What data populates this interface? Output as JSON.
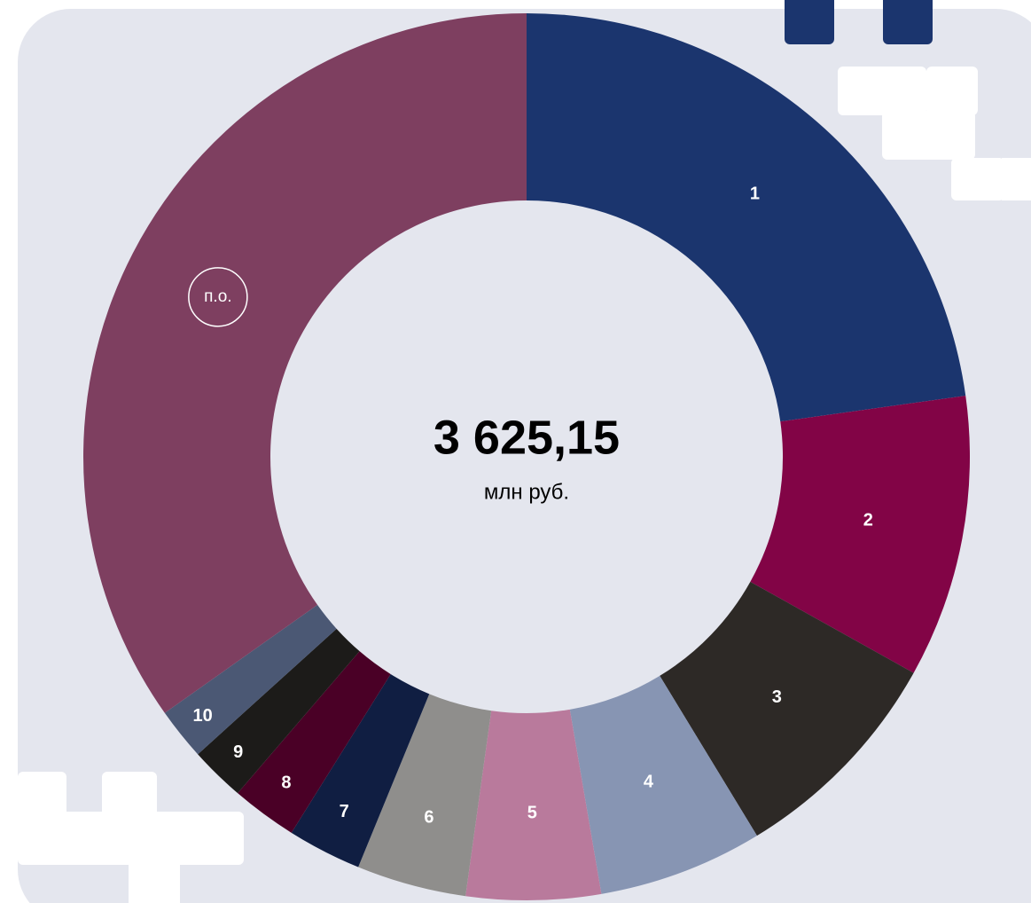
{
  "chart_data": {
    "type": "donut",
    "center_value": "3 625,15",
    "center_unit": "млн руб.",
    "categories": [
      "1",
      "2",
      "3",
      "4",
      "5",
      "6",
      "7",
      "8",
      "9",
      "10",
      "п.о."
    ],
    "values": [
      22.8,
      10.3,
      8.2,
      6.0,
      4.9,
      4.0,
      2.7,
      2.4,
      2.0,
      1.9,
      34.8
    ],
    "colors": [
      "#1b356e",
      "#820446",
      "#2d2926",
      "#8795b3",
      "#b97a9c",
      "#8f8e8c",
      "#101e42",
      "#4a0026",
      "#1c1b19",
      "#4b5874",
      "#7e3f60"
    ]
  }
}
